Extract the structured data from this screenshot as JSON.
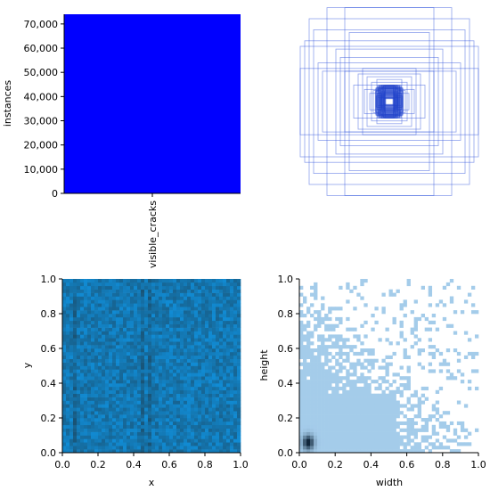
{
  "chart_data": [
    {
      "type": "bar",
      "categories": [
        "visible_cracks"
      ],
      "values": [
        74000
      ],
      "ylabel": "instances",
      "xlabel": "",
      "ylim": [
        0,
        74000
      ],
      "yticks": [
        0,
        10000,
        20000,
        30000,
        40000,
        50000,
        60000,
        70000
      ],
      "ytick_labels": [
        "0",
        "10,000",
        "20,000",
        "30,000",
        "40,000",
        "50,000",
        "60,000",
        "70,000"
      ],
      "bar_color": "#0000ff"
    },
    {
      "type": "scatter",
      "description_kind": "bounding-box overlay (centered rectangles)",
      "axes_visible": false,
      "boxes_wh": [
        [
          1.0,
          1.0
        ],
        [
          0.5,
          1.7
        ],
        [
          0.7,
          1.7
        ],
        [
          0.9,
          1.5
        ],
        [
          0.95,
          1.1
        ],
        [
          0.85,
          1.3
        ],
        [
          1.0,
          0.6
        ],
        [
          0.8,
          0.7
        ],
        [
          0.6,
          0.95
        ],
        [
          0.45,
          1.25
        ],
        [
          0.75,
          0.55
        ],
        [
          0.55,
          0.8
        ],
        [
          0.5,
          0.55
        ],
        [
          0.35,
          0.5
        ],
        [
          0.3,
          0.6
        ],
        [
          0.25,
          0.45
        ],
        [
          0.2,
          0.35
        ],
        [
          0.4,
          0.3
        ],
        [
          0.15,
          0.25
        ],
        [
          0.18,
          0.2
        ],
        [
          0.12,
          0.3
        ],
        [
          0.1,
          0.18
        ],
        [
          0.08,
          0.12
        ],
        [
          0.06,
          0.1
        ],
        [
          0.05,
          0.06
        ],
        [
          0.22,
          0.15
        ],
        [
          0.14,
          0.4
        ],
        [
          0.28,
          0.22
        ],
        [
          0.09,
          0.22
        ],
        [
          0.04,
          0.08
        ]
      ],
      "color": "#3355dd"
    },
    {
      "type": "heatmap",
      "xlabel": "x",
      "ylabel": "y",
      "xlim": [
        0,
        1
      ],
      "ylim": [
        0,
        1
      ],
      "xticks": [
        0.0,
        0.2,
        0.4,
        0.6,
        0.8,
        1.0
      ],
      "xtick_labels": [
        "0.0",
        "0.2",
        "0.4",
        "0.6",
        "0.8",
        "1.0"
      ],
      "yticks": [
        0.0,
        0.2,
        0.4,
        0.6,
        0.8,
        1.0
      ],
      "ytick_labels": [
        "0.0",
        "0.2",
        "0.4",
        "0.6",
        "0.8",
        "1.0"
      ],
      "bins": [
        50,
        50
      ],
      "color_low": "#0f96e6",
      "color_high": "#1a4f6e",
      "distribution": "roughly uniform density over the full unit square, slightly darker streaks near x≈0.07, x≈0.45 and x≈0.5"
    },
    {
      "type": "heatmap",
      "xlabel": "width",
      "ylabel": "height",
      "xlim": [
        0,
        1
      ],
      "ylim": [
        0,
        1
      ],
      "xticks": [
        0.0,
        0.2,
        0.4,
        0.6,
        0.8,
        1.0
      ],
      "xtick_labels": [
        "0.0",
        "0.2",
        "0.4",
        "0.6",
        "0.8",
        "1.0"
      ],
      "yticks": [
        0.0,
        0.2,
        0.4,
        0.6,
        0.8,
        1.0
      ],
      "ytick_labels": [
        "0.0",
        "0.2",
        "0.4",
        "0.6",
        "0.8",
        "1.0"
      ],
      "bins": [
        50,
        50
      ],
      "color_low": "#a7cfee",
      "color_high": "#10263a",
      "distribution": "density concentrated near width≈0.05, height≈0.06, sparse cells spreading toward (1,1)"
    }
  ]
}
